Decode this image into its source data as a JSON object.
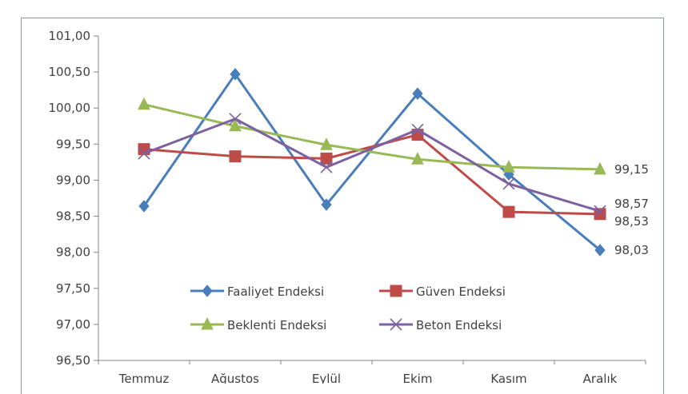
{
  "chart_data": {
    "type": "line",
    "title": "",
    "xlabel": "",
    "ylabel": "",
    "categories": [
      "Temmuz",
      "Ağustos",
      "Eylül",
      "Ekim",
      "Kasım",
      "Aralık"
    ],
    "ylim": [
      96.5,
      101.0
    ],
    "yticks": [
      "101,00",
      "100,50",
      "100,00",
      "99,50",
      "99,00",
      "98,50",
      "98,00",
      "97,50",
      "97,00",
      "96,50"
    ],
    "grid": false,
    "legend_position": "inside-bottom-center",
    "series": [
      {
        "name": "Faaliyet Endeksi",
        "color": "#4a7ebb",
        "marker": "diamond",
        "values": [
          98.64,
          100.47,
          98.66,
          100.2,
          99.08,
          98.03
        ]
      },
      {
        "name": "Güven Endeksi",
        "color": "#be4b48",
        "marker": "square",
        "values": [
          99.43,
          99.33,
          99.3,
          99.63,
          98.56,
          98.53
        ]
      },
      {
        "name": "Beklenti Endeksi",
        "color": "#98b954",
        "marker": "triangle",
        "values": [
          100.05,
          99.75,
          99.49,
          99.29,
          99.18,
          99.15
        ]
      },
      {
        "name": "Beton Endeksi",
        "color": "#7d60a0",
        "marker": "x",
        "values": [
          99.37,
          99.85,
          99.18,
          99.7,
          98.95,
          98.57
        ]
      }
    ],
    "annotations": [
      {
        "series": "Beklenti Endeksi",
        "text": "99,15"
      },
      {
        "series": "Beton Endeksi",
        "text": "98,57"
      },
      {
        "series": "Güven Endeksi",
        "text": "98,53"
      },
      {
        "series": "Faaliyet Endeksi",
        "text": "98,03"
      }
    ]
  }
}
